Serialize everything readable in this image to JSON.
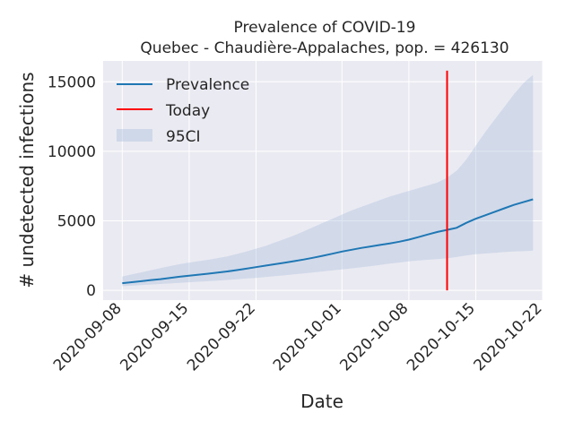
{
  "chart_data": {
    "type": "line",
    "title": "Prevalence of COVID-19",
    "subtitle": "Quebec - Chaudière-Appalaches, pop. = 426130",
    "xlabel": "Date",
    "ylabel": "# undetected infections",
    "x_range": [
      "2020-09-06",
      "2020-10-22"
    ],
    "ylim": [
      -700,
      16500
    ],
    "grid": true,
    "legend_position": "top-left",
    "xticks": [
      "2020-09-08",
      "2020-09-15",
      "2020-09-22",
      "2020-10-01",
      "2020-10-08",
      "2020-10-15",
      "2020-10-22"
    ],
    "yticks": [
      0,
      5000,
      10000,
      15000
    ],
    "yticklabels": [
      "0",
      "5000",
      "10000",
      "15000"
    ],
    "series": [
      {
        "name": "Prevalence",
        "color": "#1f77b4",
        "x": [
          "2020-09-08",
          "2020-09-09",
          "2020-09-10",
          "2020-09-11",
          "2020-09-12",
          "2020-09-13",
          "2020-09-14",
          "2020-09-15",
          "2020-09-16",
          "2020-09-17",
          "2020-09-18",
          "2020-09-19",
          "2020-09-20",
          "2020-09-21",
          "2020-09-22",
          "2020-09-23",
          "2020-09-24",
          "2020-09-25",
          "2020-09-26",
          "2020-09-27",
          "2020-09-28",
          "2020-09-29",
          "2020-09-30",
          "2020-10-01",
          "2020-10-02",
          "2020-10-03",
          "2020-10-04",
          "2020-10-05",
          "2020-10-06",
          "2020-10-07",
          "2020-10-08",
          "2020-10-09",
          "2020-10-10",
          "2020-10-11",
          "2020-10-12",
          "2020-10-13",
          "2020-10-14",
          "2020-10-15",
          "2020-10-16",
          "2020-10-17",
          "2020-10-18",
          "2020-10-19",
          "2020-10-20",
          "2020-10-21"
        ],
        "y": [
          520,
          590,
          660,
          740,
          810,
          890,
          980,
          1060,
          1130,
          1200,
          1280,
          1360,
          1460,
          1560,
          1670,
          1780,
          1880,
          1990,
          2100,
          2220,
          2350,
          2490,
          2640,
          2790,
          2920,
          3050,
          3160,
          3270,
          3380,
          3500,
          3650,
          3830,
          4020,
          4200,
          4350,
          4500,
          4850,
          5150,
          5400,
          5650,
          5900,
          6150,
          6350,
          6550
        ]
      },
      {
        "name": "Today",
        "color": "#ff0000",
        "x": [
          "2020-10-12",
          "2020-10-12"
        ],
        "y": [
          0,
          15800
        ]
      }
    ],
    "band": {
      "name": "95CI",
      "color": "#b0c4de",
      "x": [
        "2020-09-08",
        "2020-09-09",
        "2020-09-10",
        "2020-09-11",
        "2020-09-12",
        "2020-09-13",
        "2020-09-14",
        "2020-09-15",
        "2020-09-16",
        "2020-09-17",
        "2020-09-18",
        "2020-09-19",
        "2020-09-20",
        "2020-09-21",
        "2020-09-22",
        "2020-09-23",
        "2020-09-24",
        "2020-09-25",
        "2020-09-26",
        "2020-09-27",
        "2020-09-28",
        "2020-09-29",
        "2020-09-30",
        "2020-10-01",
        "2020-10-02",
        "2020-10-03",
        "2020-10-04",
        "2020-10-05",
        "2020-10-06",
        "2020-10-07",
        "2020-10-08",
        "2020-10-09",
        "2020-10-10",
        "2020-10-11",
        "2020-10-12",
        "2020-10-13",
        "2020-10-14",
        "2020-10-15",
        "2020-10-16",
        "2020-10-17",
        "2020-10-18",
        "2020-10-19",
        "2020-10-20",
        "2020-10-21"
      ],
      "lower": [
        300,
        340,
        380,
        420,
        460,
        500,
        540,
        580,
        620,
        660,
        700,
        750,
        800,
        850,
        900,
        960,
        1020,
        1080,
        1150,
        1220,
        1290,
        1360,
        1430,
        1500,
        1580,
        1660,
        1740,
        1830,
        1920,
        2000,
        2080,
        2150,
        2200,
        2250,
        2300,
        2400,
        2500,
        2600,
        2650,
        2700,
        2750,
        2800,
        2820,
        2850
      ],
      "upper": [
        1000,
        1150,
        1300,
        1450,
        1600,
        1750,
        1880,
        2000,
        2100,
        2200,
        2320,
        2450,
        2620,
        2800,
        3000,
        3200,
        3450,
        3700,
        3950,
        4250,
        4550,
        4850,
        5150,
        5450,
        5750,
        6000,
        6250,
        6500,
        6750,
        6950,
        7150,
        7350,
        7550,
        7750,
        8100,
        8600,
        9400,
        10400,
        11400,
        12300,
        13200,
        14100,
        14900,
        15500
      ]
    }
  }
}
